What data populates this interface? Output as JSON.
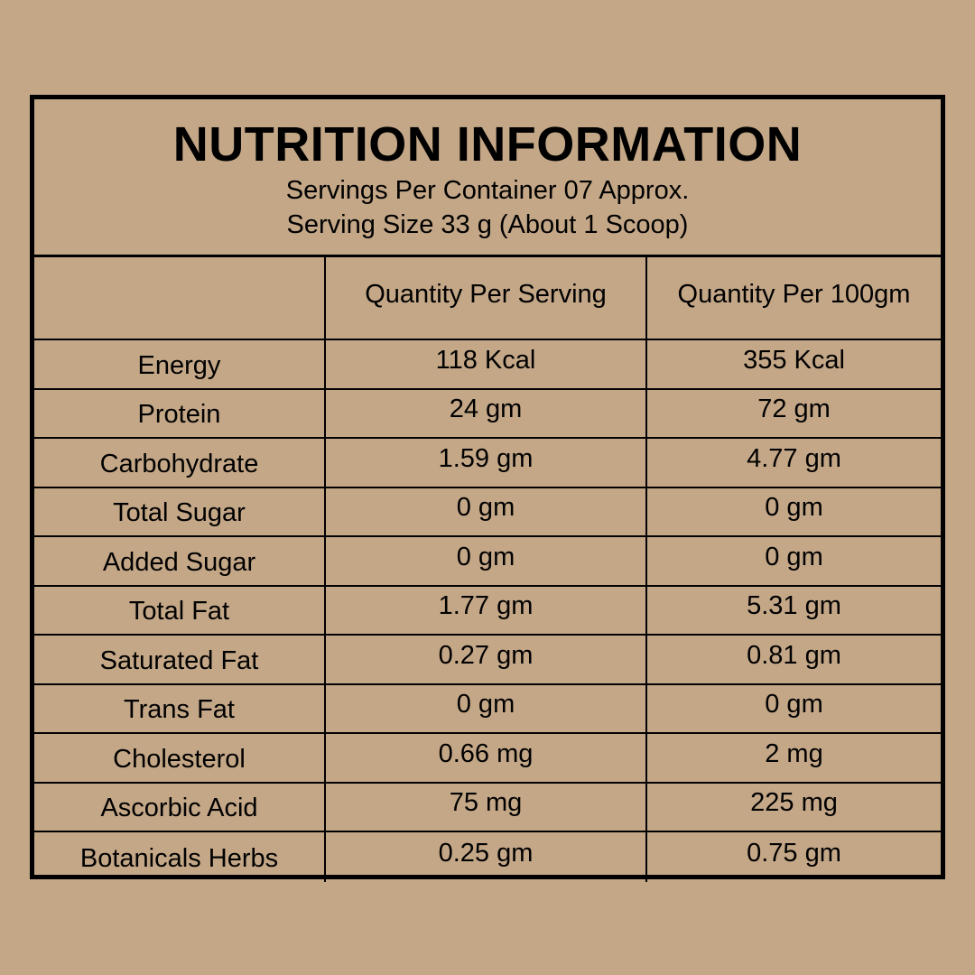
{
  "label": {
    "title": "NUTRITION INFORMATION",
    "servings_line": "Servings Per Container 07 Approx.",
    "serving_size_line": "Serving Size 33 g (About 1 Scoop)"
  },
  "table": {
    "columns": [
      "",
      "Quantity Per Serving",
      "Quantity Per 100gm"
    ],
    "rows": [
      [
        "Energy",
        "118 Kcal",
        "355 Kcal"
      ],
      [
        "Protein",
        "24 gm",
        "72 gm"
      ],
      [
        "Carbohydrate",
        "1.59 gm",
        "4.77 gm"
      ],
      [
        "Total Sugar",
        "0 gm",
        "0 gm"
      ],
      [
        "Added Sugar",
        "0 gm",
        "0 gm"
      ],
      [
        "Total Fat",
        "1.77 gm",
        "5.31 gm"
      ],
      [
        "Saturated Fat",
        "0.27 gm",
        "0.81 gm"
      ],
      [
        "Trans Fat",
        "0 gm",
        "0 gm"
      ],
      [
        "Cholesterol",
        "0.66 mg",
        "2 mg"
      ],
      [
        "Ascorbic Acid",
        "75 mg",
        "225 mg"
      ],
      [
        "Botanicals Herbs",
        "0.25 gm",
        "0.75 gm"
      ]
    ]
  },
  "colors": {
    "background": "#c4a787",
    "text": "#000000",
    "border": "#000000"
  }
}
